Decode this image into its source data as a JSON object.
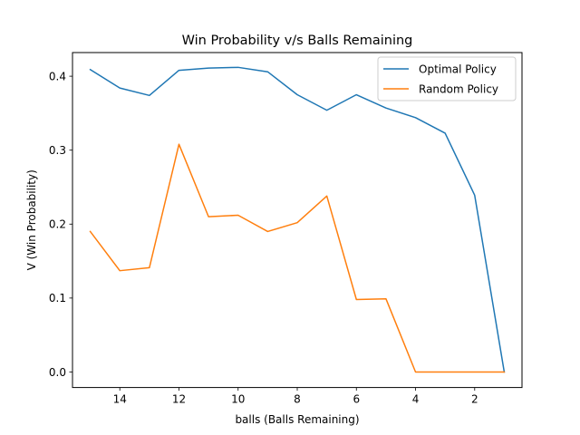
{
  "chart_data": {
    "type": "line",
    "title": "Win Probability v/s Balls Remaining",
    "xlabel": "balls (Balls Remaining)",
    "ylabel": "V (Win Probability)",
    "xlim": [
      15.6,
      0.4
    ],
    "ylim": [
      -0.021,
      0.432
    ],
    "x_ticks": [
      14,
      12,
      10,
      8,
      6,
      4,
      2
    ],
    "y_ticks": [
      0.0,
      0.1,
      0.2,
      0.3,
      0.4
    ],
    "y_tick_labels": [
      "0.0",
      "0.1",
      "0.2",
      "0.3",
      "0.4"
    ],
    "grid": false,
    "legend_position": "top-right",
    "x": [
      15,
      14,
      13,
      12,
      11,
      10,
      9,
      8,
      7,
      6,
      5,
      4,
      3,
      2,
      1
    ],
    "series": [
      {
        "name": "Optimal Policy",
        "color": "#1f77b4",
        "values": [
          0.409,
          0.384,
          0.374,
          0.408,
          0.411,
          0.412,
          0.406,
          0.375,
          0.354,
          0.375,
          0.357,
          0.344,
          0.323,
          0.239,
          0.0
        ]
      },
      {
        "name": "Random Policy",
        "color": "#ff7f0e",
        "values": [
          0.19,
          0.137,
          0.141,
          0.308,
          0.21,
          0.212,
          0.19,
          0.202,
          0.238,
          0.098,
          0.099,
          0.0,
          0.0,
          0.0,
          0.0
        ]
      }
    ]
  }
}
